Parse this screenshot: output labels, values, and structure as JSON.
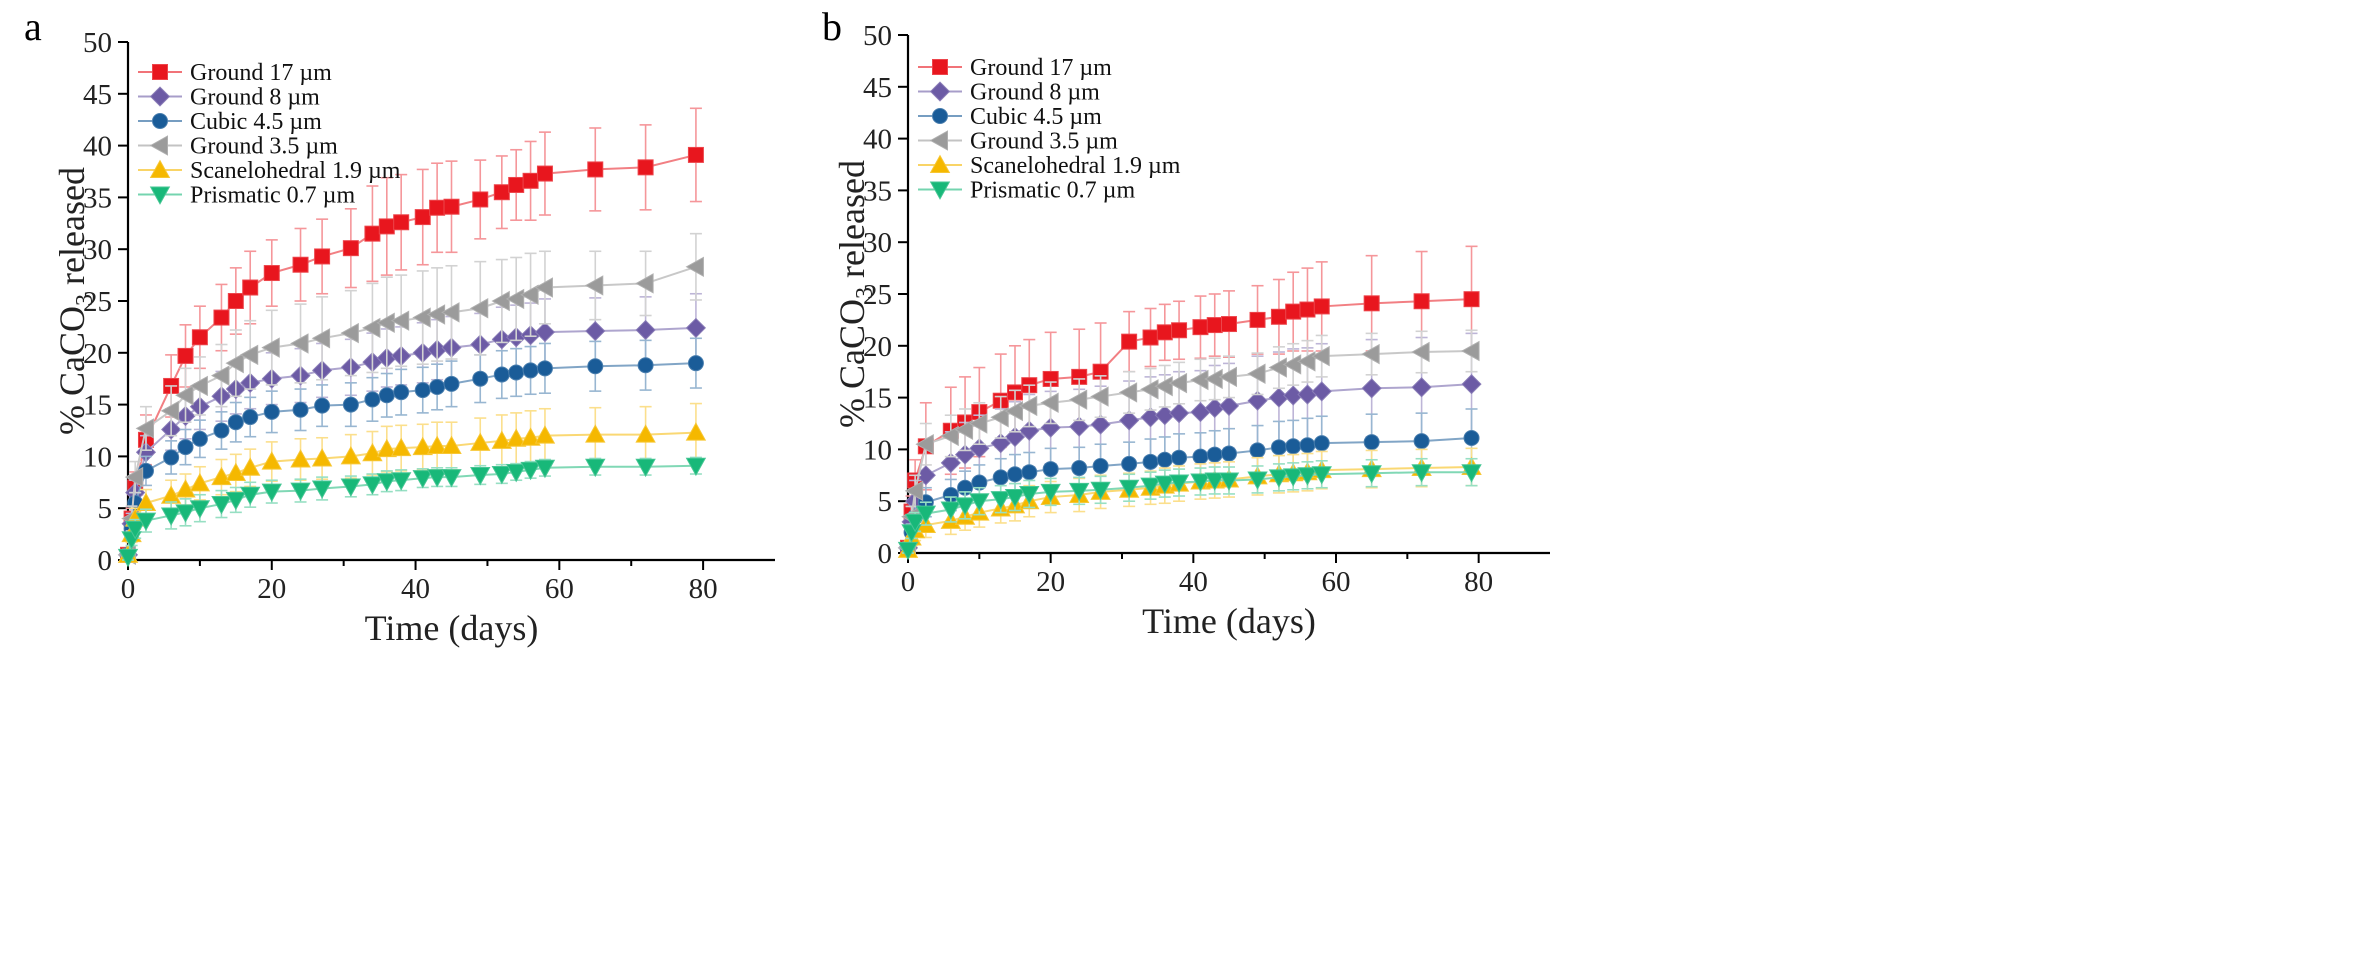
{
  "figure": {
    "panels": [
      "a",
      "b"
    ]
  },
  "chart_data": [
    {
      "panel": "a",
      "type": "line",
      "title": "",
      "xlabel": "Time (days)",
      "ylabel_prefix": "% CaCO",
      "ylabel_sub": "3",
      "ylabel_suffix": " released",
      "xlim": [
        0,
        90
      ],
      "ylim": [
        0,
        50
      ],
      "xticks": [
        0,
        20,
        40,
        60,
        80
      ],
      "yticks": [
        0,
        5,
        10,
        15,
        20,
        25,
        30,
        35,
        40,
        45,
        50
      ],
      "legend_position": "top-left",
      "x": [
        0,
        0.5,
        1,
        2.5,
        6,
        8,
        10,
        13,
        15,
        17,
        20,
        24,
        27,
        31,
        34,
        36,
        38,
        41,
        43,
        45,
        49,
        52,
        54,
        56,
        58,
        65,
        72,
        79
      ],
      "series": [
        {
          "name": "Ground 17 µm",
          "color": "#e8161e",
          "marker": "square",
          "values": [
            0.5,
            4,
            7,
            11.6,
            16.8,
            19.7,
            21.5,
            23.4,
            25,
            26.3,
            27.7,
            28.5,
            29.3,
            30.1,
            31.5,
            32.2,
            32.6,
            33.1,
            34,
            34.1,
            34.8,
            35.5,
            36.2,
            36.6,
            37.3,
            37.7,
            37.9,
            39.1
          ],
          "errors": [
            0.5,
            1,
            1.5,
            2.4,
            3,
            3,
            3,
            3.2,
            3.2,
            3.5,
            3.2,
            3.5,
            3.6,
            3.8,
            4.6,
            4.7,
            4.6,
            4.6,
            4.3,
            4.4,
            3.8,
            3.5,
            3.4,
            3.8,
            4,
            4,
            4.1,
            4.5
          ]
        },
        {
          "name": "Ground 8 µm",
          "color": "#6c5ba5",
          "marker": "diamond",
          "values": [
            0.5,
            3.5,
            6.5,
            10.4,
            12.6,
            13.9,
            14.8,
            15.8,
            16.5,
            17.1,
            17.5,
            17.8,
            18.3,
            18.6,
            19.1,
            19.5,
            19.7,
            20,
            20.3,
            20.5,
            20.8,
            21.3,
            21.5,
            21.7,
            22,
            22.1,
            22.2,
            22.4
          ],
          "errors": [
            0.5,
            1,
            1.2,
            1.6,
            2,
            2.2,
            2.2,
            2.4,
            2.4,
            2.5,
            2.5,
            2.6,
            2.6,
            2.7,
            2.8,
            2.8,
            2.8,
            2.9,
            2.9,
            3,
            3,
            3.1,
            3.1,
            3.1,
            3.2,
            3.2,
            3.2,
            3.3
          ]
        },
        {
          "name": "Cubic 4.5 µm",
          "color": "#1a5c98",
          "marker": "circle",
          "values": [
            0.5,
            3,
            5.5,
            8.6,
            9.9,
            10.9,
            11.7,
            12.5,
            13.3,
            13.8,
            14.3,
            14.5,
            14.9,
            15,
            15.5,
            15.9,
            16.2,
            16.4,
            16.7,
            17,
            17.5,
            17.9,
            18.1,
            18.3,
            18.5,
            18.7,
            18.8,
            19
          ],
          "errors": [
            0.5,
            0.8,
            1,
            1.4,
            1.6,
            1.7,
            1.8,
            1.8,
            1.9,
            1.9,
            2,
            2,
            2,
            2.1,
            2.1,
            2.1,
            2.2,
            2.2,
            2.2,
            2.2,
            2.3,
            2.3,
            2.3,
            2.3,
            2.4,
            2.4,
            2.4,
            2.4
          ]
        },
        {
          "name": "Ground 3.5 µm",
          "color": "#9b9b9b",
          "marker": "triangle-left",
          "values": [
            0.5,
            4,
            8,
            12.7,
            14.4,
            15.9,
            16.8,
            17.8,
            19,
            19.8,
            20.5,
            20.9,
            21.4,
            21.9,
            22.4,
            22.9,
            23.1,
            23.4,
            23.7,
            23.9,
            24.3,
            25,
            25.2,
            25.6,
            26.3,
            26.5,
            26.7,
            28.3
          ],
          "errors": [
            0.5,
            1.2,
            1.5,
            2.1,
            2.4,
            2.6,
            2.8,
            3,
            3.2,
            3.3,
            3.6,
            3.8,
            4,
            4.1,
            4.3,
            4.4,
            4.4,
            4.5,
            4.5,
            4.5,
            4.5,
            4,
            4,
            4,
            3.5,
            3.3,
            3.1,
            3.2
          ]
        },
        {
          "name": "Scanelohedral 1.9 µm",
          "color": "#f5b800",
          "marker": "triangle-up",
          "values": [
            0.5,
            2.5,
            4,
            5.5,
            6.2,
            6.8,
            7.4,
            8,
            8.4,
            8.9,
            9.5,
            9.7,
            9.8,
            10,
            10.3,
            10.7,
            10.8,
            10.9,
            11,
            11,
            11.3,
            11.5,
            11.7,
            11.8,
            12,
            12.1,
            12.1,
            12.3
          ],
          "errors": [
            0.5,
            0.8,
            1,
            1.3,
            1.5,
            1.5,
            1.6,
            1.7,
            1.8,
            1.8,
            1.9,
            2,
            2,
            2.1,
            2.1,
            2.2,
            2.2,
            2.2,
            2.3,
            2.3,
            2.4,
            2.5,
            2.5,
            2.6,
            2.6,
            2.6,
            2.7,
            2.8
          ]
        },
        {
          "name": "Prismatic 0.7 µm",
          "color": "#18b879",
          "marker": "triangle-down",
          "values": [
            0.3,
            2,
            3,
            3.8,
            4.3,
            4.6,
            5,
            5.4,
            5.8,
            6.3,
            6.6,
            6.7,
            6.9,
            7.1,
            7.3,
            7.6,
            7.7,
            7.9,
            8,
            8,
            8.2,
            8.3,
            8.5,
            8.7,
            8.9,
            9,
            9,
            9.1
          ],
          "errors": [
            0.3,
            0.6,
            0.9,
            1.1,
            1.3,
            1.3,
            1.3,
            1.3,
            1.2,
            1.2,
            1.1,
            1.1,
            1.1,
            1,
            1,
            1,
            1,
            0.9,
            0.9,
            0.9,
            0.9,
            0.9,
            0.8,
            0.8,
            0.8,
            0.8,
            0.8,
            0.8
          ]
        }
      ]
    },
    {
      "panel": "b",
      "type": "line",
      "title": "",
      "xlabel": "Time (days)",
      "ylabel_prefix": "% CaCO",
      "ylabel_sub": "3",
      "ylabel_suffix": " released",
      "xlim": [
        0,
        90
      ],
      "ylim": [
        0,
        50
      ],
      "xticks": [
        0,
        20,
        40,
        60,
        80
      ],
      "yticks": [
        0,
        5,
        10,
        15,
        20,
        25,
        30,
        35,
        40,
        45,
        50
      ],
      "legend_position": "top-left",
      "x": [
        0,
        0.5,
        1,
        2.5,
        6,
        8,
        10,
        13,
        15,
        17,
        20,
        24,
        27,
        31,
        34,
        36,
        38,
        41,
        43,
        45,
        49,
        52,
        54,
        56,
        58,
        65,
        72,
        79
      ],
      "series": [
        {
          "name": "Ground 17 µm",
          "color": "#e8161e",
          "marker": "square",
          "values": [
            0.5,
            4,
            7,
            10.3,
            11.8,
            12.6,
            13.6,
            14.7,
            15.5,
            16.2,
            16.8,
            17,
            17.5,
            20.4,
            20.8,
            21.3,
            21.5,
            21.8,
            22,
            22.1,
            22.5,
            22.8,
            23.3,
            23.5,
            23.8,
            24.1,
            24.3,
            24.5
          ],
          "errors": [
            0.5,
            1.5,
            2,
            4.2,
            4.2,
            4.4,
            4.3,
            4.5,
            4.5,
            4.4,
            4.5,
            4.6,
            4.7,
            2.9,
            2.8,
            2.7,
            2.8,
            3,
            3,
            3.2,
            3.3,
            3.6,
            3.8,
            4,
            4.3,
            4.6,
            4.8,
            5.1
          ]
        },
        {
          "name": "Ground 8 µm",
          "color": "#6c5ba5",
          "marker": "diamond",
          "values": [
            0.5,
            3,
            5,
            7.5,
            8.7,
            9.5,
            10.1,
            10.6,
            11.2,
            11.8,
            12.1,
            12.2,
            12.4,
            12.8,
            13.1,
            13.3,
            13.5,
            13.6,
            14,
            14.2,
            14.7,
            15,
            15.2,
            15.3,
            15.6,
            15.9,
            16,
            16.3
          ],
          "errors": [
            0.5,
            1.5,
            2,
            2.8,
            3,
            3.1,
            3.2,
            3.3,
            3.4,
            3.5,
            3.5,
            3.6,
            3.7,
            3.8,
            3.9,
            3.9,
            4,
            4,
            4.1,
            4.1,
            4.3,
            4.4,
            4.5,
            4.5,
            4.6,
            4.7,
            4.8,
            4.9
          ]
        },
        {
          "name": "Cubic 4.5 µm",
          "color": "#1a5c98",
          "marker": "circle",
          "values": [
            0.5,
            2,
            3.5,
            4.9,
            5.6,
            6.3,
            6.8,
            7.3,
            7.6,
            7.8,
            8.1,
            8.2,
            8.4,
            8.6,
            8.8,
            9,
            9.2,
            9.3,
            9.5,
            9.6,
            9.9,
            10.2,
            10.3,
            10.4,
            10.6,
            10.7,
            10.8,
            11.1
          ],
          "errors": [
            0.5,
            0.8,
            1,
            1.4,
            1.5,
            1.6,
            1.7,
            1.8,
            1.9,
            1.9,
            2,
            2,
            2.1,
            2.1,
            2.2,
            2.2,
            2.3,
            2.3,
            2.3,
            2.4,
            2.4,
            2.5,
            2.5,
            2.6,
            2.6,
            2.7,
            2.7,
            2.8
          ]
        },
        {
          "name": "Ground 3.5 µm",
          "color": "#9b9b9b",
          "marker": "triangle-left",
          "values": [
            0.5,
            3.5,
            6,
            10.5,
            11.3,
            11.9,
            12.5,
            13.1,
            13.7,
            14.2,
            14.5,
            14.8,
            15.1,
            15.5,
            15.8,
            16.1,
            16.4,
            16.7,
            16.8,
            17,
            17.3,
            17.9,
            18.2,
            18.5,
            19,
            19.2,
            19.4,
            19.5
          ],
          "errors": [
            0.5,
            1,
            1.5,
            2,
            2,
            2,
            2,
            2,
            2,
            2,
            2,
            2,
            2,
            2,
            2,
            2,
            2,
            2,
            2,
            2,
            2,
            2,
            2,
            2,
            2,
            2,
            2,
            2
          ]
        },
        {
          "name": "Scanelohedral 1.9 µm",
          "color": "#f5b800",
          "marker": "triangle-up",
          "values": [
            0.3,
            1.5,
            2.2,
            2.7,
            3.1,
            3.5,
            3.9,
            4.3,
            4.6,
            5,
            5.4,
            5.6,
            5.9,
            6.1,
            6.3,
            6.5,
            6.7,
            6.9,
            7,
            7.1,
            7.4,
            7.6,
            7.7,
            7.8,
            8,
            8.1,
            8.2,
            8.3
          ],
          "errors": [
            0.3,
            0.8,
            1,
            1.2,
            1.3,
            1.3,
            1.4,
            1.4,
            1.5,
            1.5,
            1.5,
            1.6,
            1.6,
            1.6,
            1.6,
            1.7,
            1.7,
            1.7,
            1.7,
            1.7,
            1.8,
            1.8,
            1.8,
            1.8,
            1.8,
            1.8,
            1.8,
            1.8
          ]
        },
        {
          "name": "Prismatic 0.7 µm",
          "color": "#18b879",
          "marker": "triangle-down",
          "values": [
            0.3,
            2,
            3,
            3.8,
            4.2,
            4.6,
            5,
            5.2,
            5.4,
            5.7,
            5.9,
            6,
            6.1,
            6.3,
            6.5,
            6.7,
            6.8,
            6.9,
            7,
            7,
            7.1,
            7.3,
            7.4,
            7.5,
            7.6,
            7.7,
            7.8,
            7.8
          ],
          "errors": [
            0.3,
            0.6,
            0.9,
            1.1,
            1.2,
            1.3,
            1.3,
            1.3,
            1.3,
            1.3,
            1.3,
            1.3,
            1.3,
            1.3,
            1.3,
            1.3,
            1.3,
            1.3,
            1.3,
            1.3,
            1.3,
            1.3,
            1.3,
            1.3,
            1.3,
            1.3,
            1.3,
            1.3
          ]
        }
      ]
    }
  ]
}
